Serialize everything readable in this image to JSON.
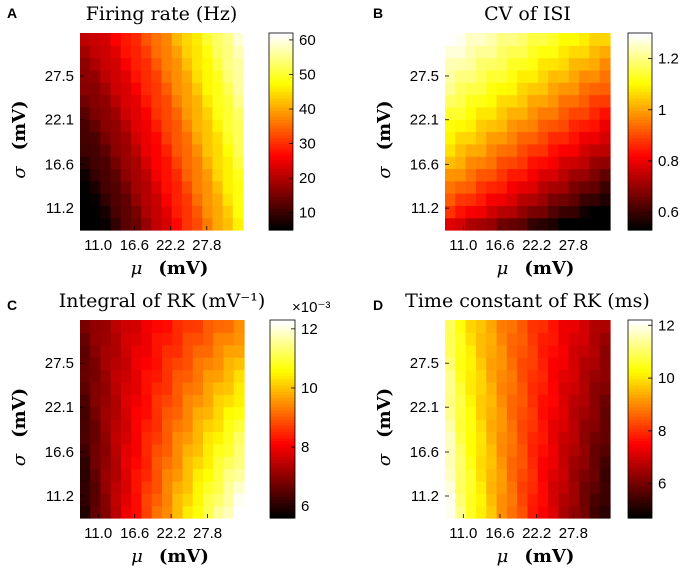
{
  "chart_data": [
    {
      "panel_label": "A",
      "type": "heatmap",
      "title": "Firing rate (Hz)",
      "xlabel_symbol": "μ",
      "xlabel_unit": "(mV)",
      "ylabel_symbol": "σ",
      "ylabel_unit": "(mV)",
      "x_range": [
        8.2,
        33.4
      ],
      "y_range": [
        8.5,
        32.8
      ],
      "grid_size": [
        16,
        16
      ],
      "x_ticks": [
        11.0,
        16.6,
        22.2,
        27.8
      ],
      "x_tick_labels": [
        "11.0",
        "16.6",
        "22.2",
        "27.8"
      ],
      "y_ticks": [
        11.2,
        16.6,
        22.1,
        27.5
      ],
      "y_tick_labels": [
        "11.2",
        "16.6",
        "22.1",
        "27.5"
      ],
      "colormap": "hot",
      "colorbar": {
        "range": [
          5,
          62
        ],
        "ticks": [
          10,
          20,
          30,
          40,
          50,
          60
        ],
        "tick_labels": [
          "10",
          "20",
          "30",
          "40",
          "50",
          "60"
        ],
        "exponent_label": ""
      },
      "corner_values": {
        "low_mu_low_sigma": 5,
        "low_mu_high_sigma": 24,
        "high_mu_low_sigma": 55,
        "high_mu_high_sigma": 62
      },
      "surface": "rate"
    },
    {
      "panel_label": "B",
      "type": "heatmap",
      "title": "CV of ISI",
      "xlabel_symbol": "μ",
      "xlabel_unit": "(mV)",
      "ylabel_symbol": "σ",
      "ylabel_unit": "(mV)",
      "x_range": [
        8.2,
        33.4
      ],
      "y_range": [
        8.5,
        32.8
      ],
      "grid_size": [
        16,
        16
      ],
      "x_ticks": [
        11.0,
        16.6,
        22.2,
        27.8
      ],
      "x_tick_labels": [
        "11.0",
        "16.6",
        "22.2",
        "27.8"
      ],
      "y_ticks": [
        11.2,
        16.6,
        22.1,
        27.5
      ],
      "y_tick_labels": [
        "11.2",
        "16.6",
        "22.1",
        "27.5"
      ],
      "colormap": "hot",
      "colorbar": {
        "range": [
          0.53,
          1.3
        ],
        "ticks": [
          0.6,
          0.8,
          1.0,
          1.2
        ],
        "tick_labels": [
          "0.6",
          "0.8",
          "1",
          "1.2"
        ],
        "exponent_label": ""
      },
      "corner_values": {
        "low_mu_low_sigma": 0.85,
        "low_mu_high_sigma": 1.3,
        "high_mu_low_sigma": 0.53,
        "high_mu_high_sigma": 1.18
      },
      "surface": "cv"
    },
    {
      "panel_label": "C",
      "type": "heatmap",
      "title": "Integral of RK (mV⁻¹)",
      "xlabel_symbol": "μ",
      "xlabel_unit": "(mV)",
      "ylabel_symbol": "σ",
      "ylabel_unit": "(mV)",
      "x_range": [
        8.2,
        33.4
      ],
      "y_range": [
        8.5,
        32.8
      ],
      "grid_size": [
        16,
        16
      ],
      "x_ticks": [
        11.0,
        16.6,
        22.2,
        27.8
      ],
      "x_tick_labels": [
        "11.0",
        "16.6",
        "22.2",
        "27.8"
      ],
      "y_ticks": [
        11.2,
        16.6,
        22.1,
        27.5
      ],
      "y_tick_labels": [
        "11.2",
        "16.6",
        "22.1",
        "27.5"
      ],
      "colormap": "hot",
      "colorbar": {
        "range": [
          5.6,
          12.3
        ],
        "ticks": [
          6,
          8,
          10,
          12
        ],
        "tick_labels": [
          "6",
          "8",
          "10",
          "12"
        ],
        "exponent_label": "×10⁻³"
      },
      "corner_values": {
        "low_mu_low_sigma": 5.6,
        "low_mu_high_sigma": 6.5,
        "high_mu_low_sigma": 12.3,
        "high_mu_high_sigma": 10.0
      },
      "surface": "integral"
    },
    {
      "panel_label": "D",
      "type": "heatmap",
      "title": "Time constant of RK (ms)",
      "xlabel_symbol": "μ",
      "xlabel_unit": "(mV)",
      "ylabel_symbol": "σ",
      "ylabel_unit": "(mV)",
      "x_range": [
        8.2,
        33.4
      ],
      "y_range": [
        8.5,
        32.8
      ],
      "grid_size": [
        16,
        16
      ],
      "x_ticks": [
        11.0,
        16.6,
        22.2,
        27.8
      ],
      "x_tick_labels": [
        "11.0",
        "16.6",
        "22.2",
        "27.8"
      ],
      "y_ticks": [
        11.2,
        16.6,
        22.1,
        27.5
      ],
      "y_tick_labels": [
        "11.2",
        "16.6",
        "22.1",
        "27.5"
      ],
      "colormap": "hot",
      "colorbar": {
        "range": [
          4.7,
          12.2
        ],
        "ticks": [
          6,
          8,
          10,
          12
        ],
        "tick_labels": [
          "6",
          "8",
          "10",
          "12"
        ],
        "exponent_label": ""
      },
      "corner_values": {
        "low_mu_low_sigma": 12.2,
        "low_mu_high_sigma": 10.5,
        "high_mu_low_sigma": 4.7,
        "high_mu_high_sigma": 6.0
      },
      "surface": "tau"
    }
  ]
}
